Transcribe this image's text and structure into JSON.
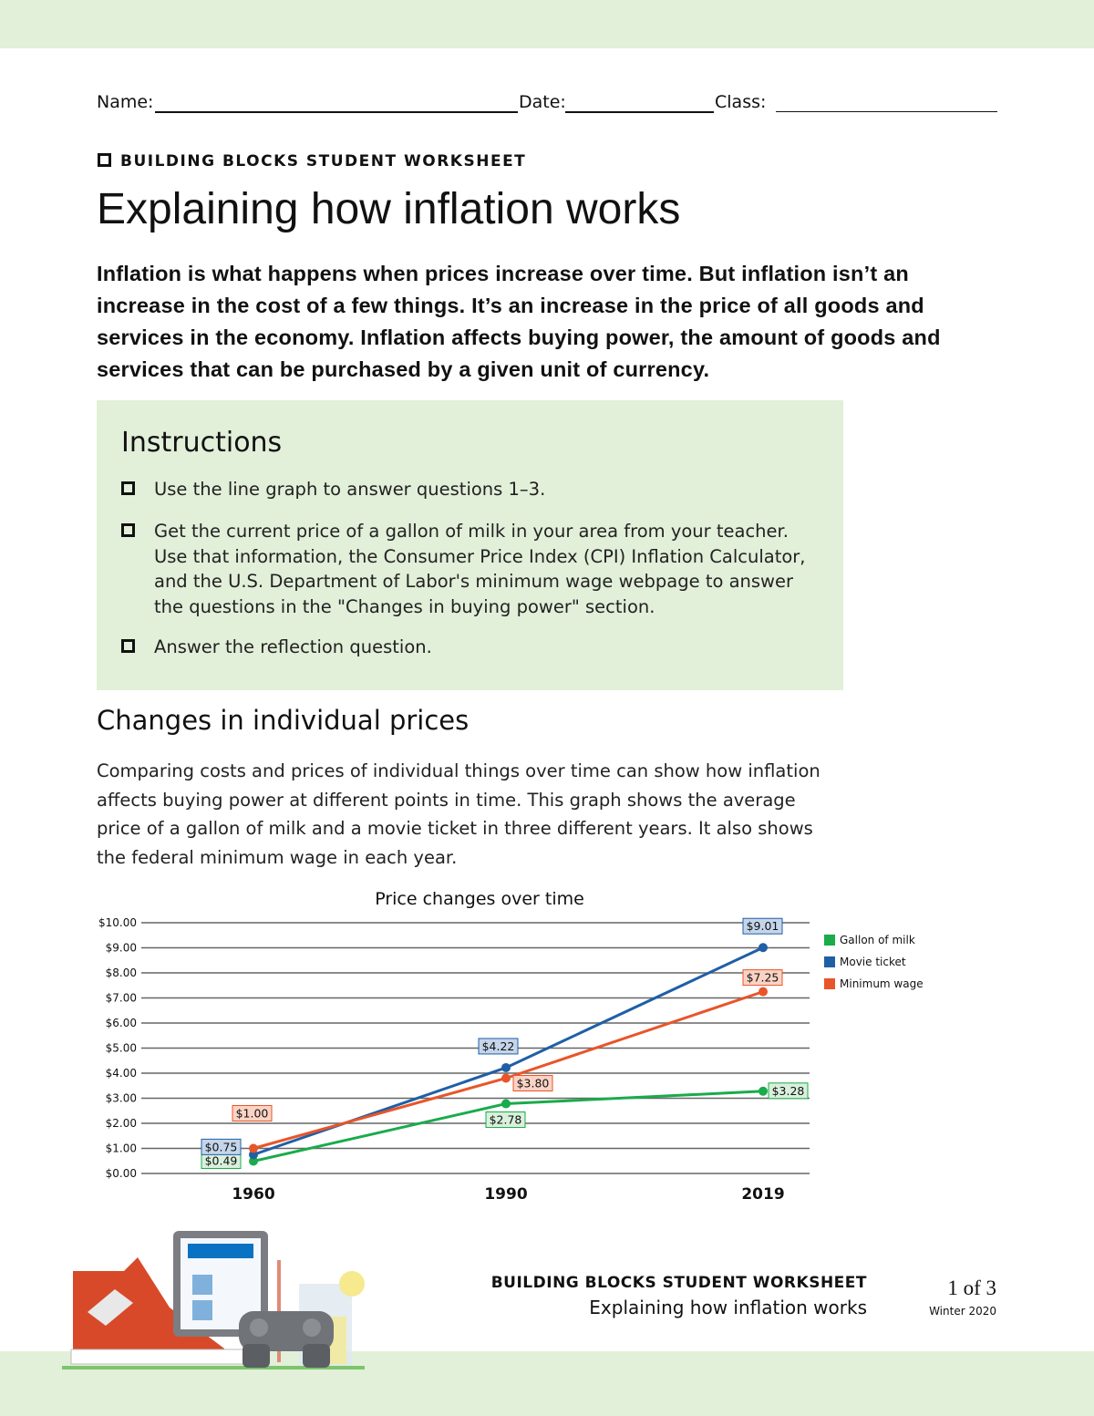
{
  "header": {
    "name_label": "Name:",
    "date_label": "Date:",
    "class_label": "Class:"
  },
  "kicker": "BUILDING BLOCKS STUDENT WORKSHEET",
  "title": "Explaining how inflation works",
  "intro": "Inflation is what happens when prices increase over time. But inflation isn’t an increase in the cost of a few things. It’s an increase in the price of all goods and services in the economy. Inflation affects buying power, the amount of goods and services that can be purchased by a given unit of currency.",
  "instructions": {
    "heading": "Instructions",
    "items": [
      "Use the line graph to answer questions 1–3.",
      "Get the current price of a gallon of milk in your area from your teacher. Use that information, the Consumer Price Index (CPI) Inflation Calculator, and the U.S. Department of Labor's minimum wage webpage to answer the questions in the \"Changes in buying power\" section.",
      "Answer the reflection question."
    ]
  },
  "section": {
    "heading": "Changes in individual prices",
    "paragraph": "Comparing costs and prices of individual things over time can show how inflation affects buying power at different points in time. This graph shows the average price of a gallon of milk and a movie ticket in three different years. It also shows the federal minimum wage in each year."
  },
  "chart_data": {
    "type": "line",
    "title": "Price changes over time",
    "categories": [
      "1960",
      "1990",
      "2019"
    ],
    "y_ticks": [
      "$0.00",
      "$1.00",
      "$2.00",
      "$3.00",
      "$4.00",
      "$5.00",
      "$6.00",
      "$7.00",
      "$8.00",
      "$9.00",
      "$10.00"
    ],
    "ylim": [
      0,
      10
    ],
    "grid": true,
    "legend_position": "right",
    "series": [
      {
        "name": "Gallon of milk",
        "color": "#1aab4b",
        "values": [
          0.49,
          2.78,
          3.28
        ],
        "labels": [
          "$0.49",
          "$2.78",
          "$3.28"
        ]
      },
      {
        "name": "Movie ticket",
        "color": "#1f5fa6",
        "values": [
          0.75,
          4.22,
          9.01
        ],
        "labels": [
          "$0.75",
          "$4.22",
          "$9.01"
        ]
      },
      {
        "name": "Minimum wage",
        "color": "#e8552a",
        "values": [
          1.0,
          3.8,
          7.25
        ],
        "labels": [
          "$1.00",
          "$3.80",
          "$7.25"
        ]
      }
    ]
  },
  "footer": {
    "kicker": "BUILDING BLOCKS STUDENT WORKSHEET",
    "title": "Explaining how inflation works",
    "page": "1 of 3",
    "season": "Winter 2020"
  },
  "colors": {
    "band": "#e2efd9"
  }
}
